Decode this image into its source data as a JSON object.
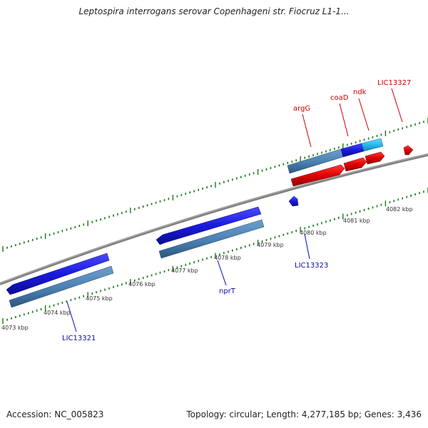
{
  "title": "Leptospira interrogans serovar Copenhageni str. Fiocruz L1-1...",
  "footer": {
    "accession": "Accession: NC_005823",
    "summary": "Topology: circular; Length: 4,277,185 bp; Genes: 3,436"
  },
  "colors": {
    "forward_gene": "#e00000",
    "reverse_gene": "#1a1adf",
    "cds_block": "#4a7fb0",
    "highlight_gene": "#29b8ef",
    "backbone": "#8a8a8a",
    "tick": "#1a7a1a",
    "forward_label": "#cc0000",
    "reverse_label": "#0a0aa8"
  },
  "scale": {
    "tick_labels": [
      "4073 kbp",
      "4074 kbp",
      "4075 kbp",
      "4076 kbp",
      "4077 kbp",
      "4078 kbp",
      "4079 kbp",
      "4080 kbp",
      "4081 kbp",
      "4082 kbp"
    ]
  },
  "genes": [
    {
      "name": "argG",
      "strand": "forward"
    },
    {
      "name": "coaD",
      "strand": "forward"
    },
    {
      "name": "ndk",
      "strand": "forward"
    },
    {
      "name": "LIC13327",
      "strand": "forward"
    },
    {
      "name": "LIC13321",
      "strand": "reverse"
    },
    {
      "name": "nprT",
      "strand": "reverse"
    },
    {
      "name": "LIC13323",
      "strand": "reverse"
    }
  ]
}
